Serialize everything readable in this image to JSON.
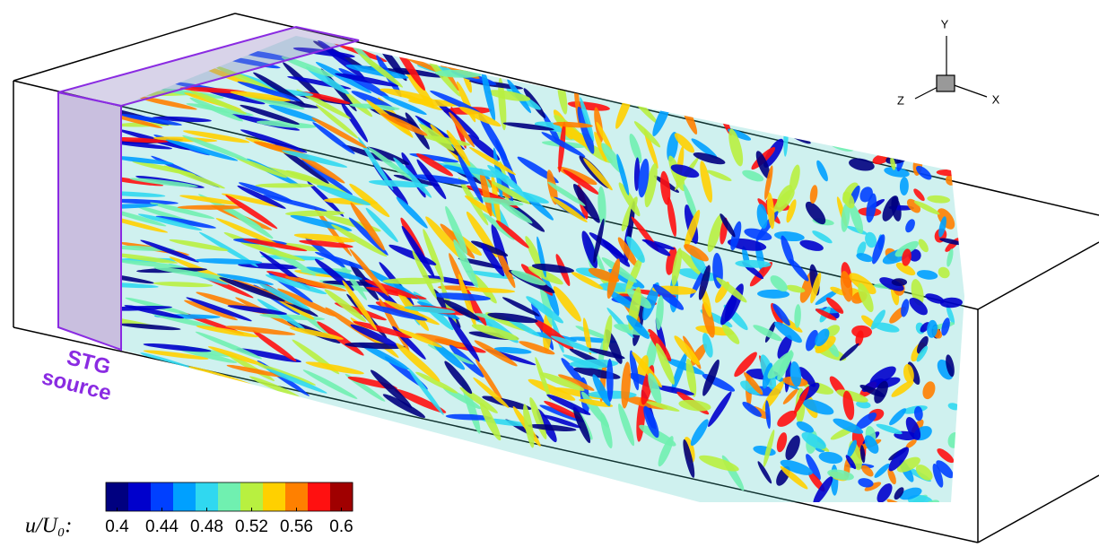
{
  "axes_triad": {
    "y": "Y",
    "z": "Z",
    "x": "X"
  },
  "annotation": {
    "line1": "STG",
    "line2": "source"
  },
  "colorbar": {
    "label": "u/U₀:",
    "clim": [
      0.39,
      0.61
    ],
    "ticks": [
      0.4,
      0.44,
      0.48,
      0.52,
      0.56,
      0.6
    ],
    "colors": [
      "#000080",
      "#0000cc",
      "#0040ff",
      "#00a0ff",
      "#30d8f0",
      "#70f0b0",
      "#b8f040",
      "#ffd000",
      "#ff8000",
      "#ff1010",
      "#a00000"
    ]
  }
}
